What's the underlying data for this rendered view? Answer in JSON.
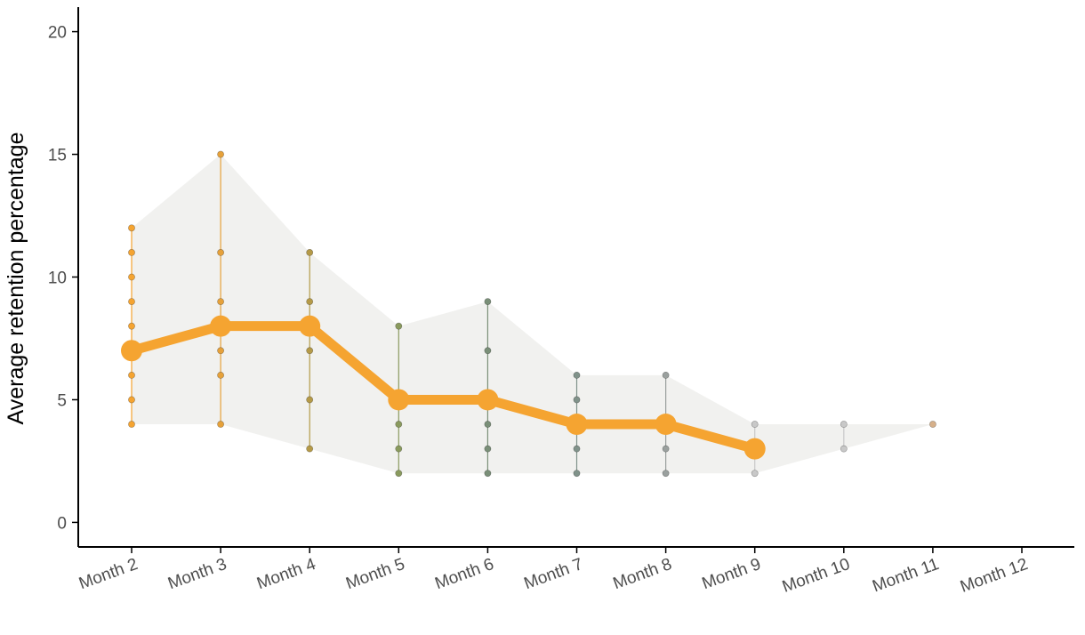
{
  "chart_data": {
    "type": "line",
    "title": "",
    "xlabel": "",
    "ylabel": "Average retention percentage",
    "ylim": [
      -1,
      21
    ],
    "yticks": [
      0,
      5,
      10,
      15,
      20
    ],
    "categories": [
      "Month 2",
      "Month 3",
      "Month 4",
      "Month 5",
      "Month 6",
      "Month 7",
      "Month 8",
      "Month 9",
      "Month 10",
      "Month 11",
      "Month 12"
    ],
    "grid": false,
    "legend": "none",
    "series": [
      {
        "values": [
          7,
          8,
          8,
          5,
          5,
          4,
          4,
          3,
          null,
          null,
          null
        ]
      }
    ],
    "range_band": {
      "min": [
        4,
        4,
        3,
        2,
        2,
        2,
        2,
        2,
        3,
        4,
        null
      ],
      "max": [
        12,
        15,
        11,
        8,
        9,
        6,
        6,
        4,
        4,
        4,
        null
      ]
    },
    "observations": [
      [
        4,
        5,
        6,
        7,
        8,
        9,
        10,
        11,
        12
      ],
      [
        4,
        6,
        7,
        8,
        9,
        11,
        15
      ],
      [
        3,
        5,
        7,
        8,
        9,
        11
      ],
      [
        2,
        3,
        4,
        5,
        8
      ],
      [
        2,
        3,
        4,
        5,
        7,
        9
      ],
      [
        2,
        3,
        4,
        5,
        6
      ],
      [
        2,
        3,
        4,
        6
      ],
      [
        2,
        3,
        4
      ],
      [
        3,
        4
      ],
      [
        4
      ],
      []
    ],
    "colors": {
      "line": "#f5a431",
      "band": "#f1f1ef",
      "axis": "#000000",
      "point_palette": [
        "#f5a431",
        "#e6a13a",
        "#b59a48",
        "#8a9a5e",
        "#7a8f78",
        "#80928a",
        "#9aa09e",
        "#c8c8c8",
        "#c8c8c8",
        "#d6b08a",
        "#cccccc"
      ]
    }
  }
}
